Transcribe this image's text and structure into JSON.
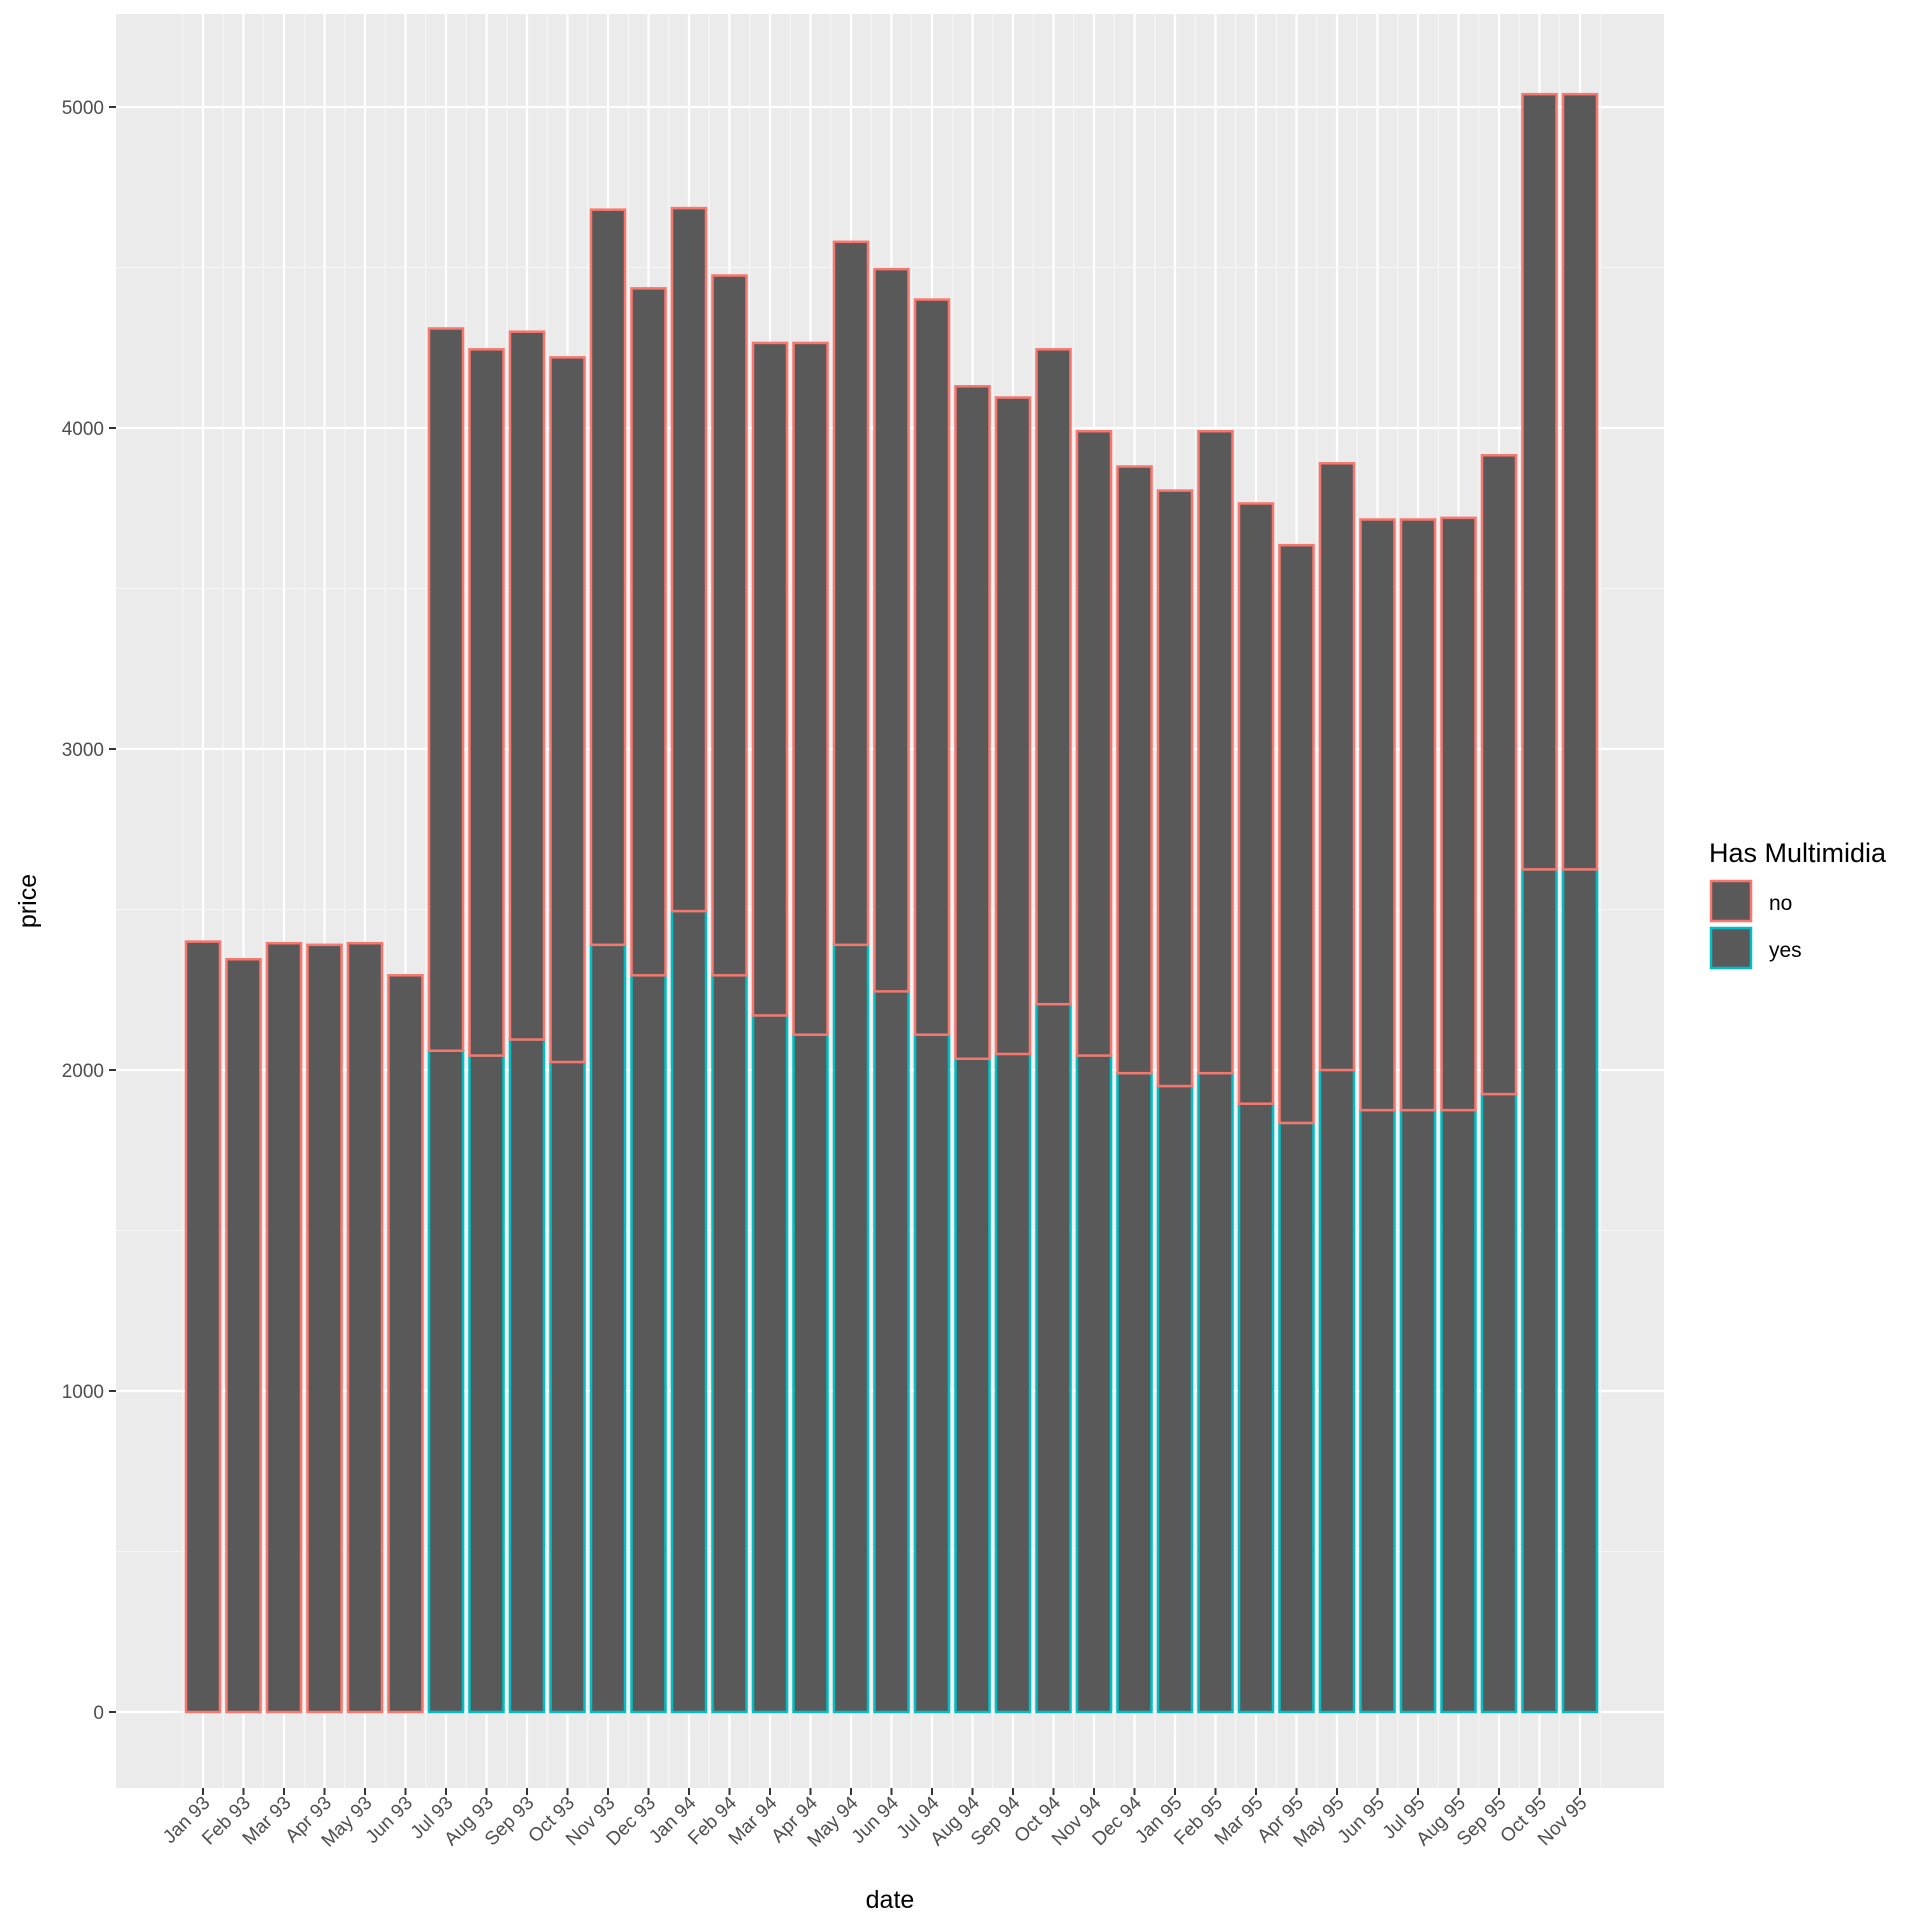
{
  "chart_data": {
    "type": "bar",
    "stacked": true,
    "xlabel": "date",
    "ylabel": "price",
    "categories": [
      "Jan 93",
      "Feb 93",
      "Mar 93",
      "Apr 93",
      "May 93",
      "Jun 93",
      "Jul 93",
      "Aug 93",
      "Sep 93",
      "Oct 93",
      "Nov 93",
      "Dec 93",
      "Jan 94",
      "Feb 94",
      "Mar 94",
      "Apr 94",
      "May 94",
      "Jun 94",
      "Jul 94",
      "Aug 94",
      "Sep 94",
      "Oct 94",
      "Nov 94",
      "Dec 94",
      "Jan 95",
      "Feb 95",
      "Mar 95",
      "Apr 95",
      "May 95",
      "Jun 95",
      "Jul 95",
      "Aug 95",
      "Sep 95",
      "Oct 95",
      "Nov 95"
    ],
    "series": [
      {
        "name": "yes",
        "color": "#00BFC4",
        "values": [
          0,
          0,
          0,
          0,
          0,
          0,
          2060,
          2045,
          2095,
          2025,
          2390,
          2295,
          2495,
          2295,
          2170,
          2110,
          2390,
          2245,
          2110,
          2035,
          2050,
          2205,
          2045,
          1990,
          1950,
          1990,
          1895,
          1835,
          2000,
          1875,
          1875,
          1875,
          1925,
          2625,
          2625
        ]
      },
      {
        "name": "no",
        "color": "#F8766D",
        "values": [
          2400,
          2345,
          2395,
          2390,
          2395,
          2295,
          2250,
          2200,
          2205,
          2195,
          2290,
          2140,
          2190,
          2180,
          2095,
          2155,
          2190,
          2250,
          2290,
          2095,
          2045,
          2040,
          1945,
          1890,
          1855,
          2000,
          1870,
          1800,
          1890,
          1840,
          1840,
          1845,
          1990,
          2415,
          2415
        ]
      }
    ],
    "ylim": [
      -250,
      5250
    ],
    "yticks": [
      0,
      1000,
      2000,
      3000,
      4000,
      5000
    ],
    "ytick_labels": [
      "0",
      "1000",
      "2000",
      "3000",
      "4000",
      "5000"
    ],
    "bar_fill": "#595959",
    "panel_background": "#EBEBEB",
    "grid": true,
    "legend": {
      "title": "Has Multimidia",
      "position": "right",
      "entries": [
        "no",
        "yes"
      ]
    }
  }
}
